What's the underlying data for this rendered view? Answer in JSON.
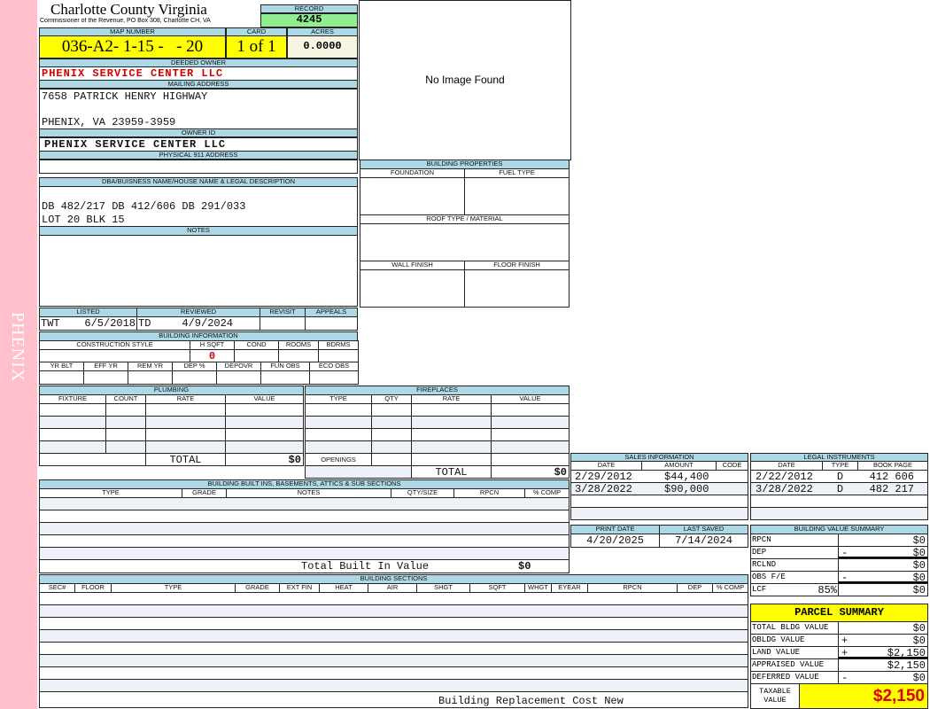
{
  "side_label": "PHENIX",
  "header": {
    "title": "Charlotte County Virginia",
    "subtitle": "Commissioner of the Revenue, PO Box 308, Charlotte CH, VA",
    "record_label": "RECORD",
    "record_value": "4245"
  },
  "map": {
    "map_number_label": "MAP NUMBER",
    "map_number": "036-A2- 1-15 -   - 20",
    "card_label": "CARD",
    "card": "1 of 1",
    "acres_label": "ACRES",
    "acres": "0.0000"
  },
  "owner": {
    "deeded_owner_label": "DEEDED OWNER",
    "deeded_owner": "PHENIX SERVICE CENTER LLC",
    "mailing_address_label": "MAILING ADDRESS",
    "address_line1": "7658 PATRICK HENRY HIGHWAY",
    "address_line2": "PHENIX, VA 23959-3959",
    "owner_id_label": "OWNER ID",
    "owner_id": "PHENIX SERVICE CENTER LLC",
    "physical_address_label": "PHYSICAL 911 ADDRESS"
  },
  "image": {
    "placeholder": "No Image Found"
  },
  "legal": {
    "label": "DBA/BUISNESS NAME/HOUSE NAME & LEGAL DESCRIPTION",
    "line1": "DB 482/217 DB 412/606 DB 291/033",
    "line2": "LOT 20 BLK 15",
    "notes_label": "NOTES"
  },
  "building_properties": {
    "title": "BUILDING PROPERTIES",
    "foundation": "FOUNDATION",
    "fuel_type": "FUEL TYPE",
    "roof": "ROOF TYPE / MATERIAL",
    "wall_finish": "WALL FINISH",
    "floor_finish": "FLOOR FINISH"
  },
  "review": {
    "listed_label": "LISTED",
    "listed_by": "TWT",
    "listed_date": "6/5/2018",
    "reviewed_label": "REVIEWED",
    "reviewed_by": "TD",
    "reviewed_date": "4/9/2024",
    "revisit_label": "REVISIT",
    "appeals_label": "APPEALS"
  },
  "building_info": {
    "title": "BUILDING INFORMATION",
    "row1_labels": [
      "CONSTRUCTION STYLE",
      "H SQFT",
      "COND",
      "ROOMS",
      "BDRMS"
    ],
    "hsqft": "0",
    "row2_labels": [
      "YR BLT",
      "EFF YR",
      "REM YR",
      "DEP %",
      "DEPOVR",
      "FUN OBS",
      "ECO OBS"
    ]
  },
  "plumbing": {
    "title": "PLUMBING",
    "columns": [
      "FIXTURE",
      "COUNT",
      "RATE",
      "VALUE"
    ],
    "total_label": "TOTAL",
    "total": "$0"
  },
  "fireplaces": {
    "title": "FIREPLACES",
    "columns": [
      "TYPE",
      "QTY",
      "RATE",
      "VALUE"
    ],
    "openings_label": "OPENINGS",
    "total_label": "TOTAL",
    "total": "$0"
  },
  "built_ins": {
    "title": "BUILDING BUILT INS, BASEMENTS, ATTICS & SUB SECTIONS",
    "columns": [
      "TYPE",
      "GRADE",
      "NOTES",
      "QTY/SIZE",
      "RPCN",
      "% COMP"
    ],
    "total_label": "Total Built In Value",
    "total": "$0"
  },
  "sections": {
    "title": "BUILDING SECTIONS",
    "columns": [
      "SEC#",
      "FLOOR",
      "TYPE",
      "GRADE",
      "EXT FIN",
      "HEAT",
      "AIR",
      "SHGT",
      "SQFT",
      "WHGT",
      "EYEAR",
      "RPCN",
      "DEP",
      "% COMP"
    ],
    "footer_label": "Building Replacement Cost New"
  },
  "sales": {
    "title": "SALES INFORMATION",
    "columns": [
      "DATE",
      "AMOUNT",
      "CODE"
    ],
    "rows": [
      {
        "date": "2/29/2012",
        "amount": "$44,400",
        "code": ""
      },
      {
        "date": "3/28/2022",
        "amount": "$90,000",
        "code": ""
      }
    ]
  },
  "legal_instruments": {
    "title": "LEGAL INSTRUMENTS",
    "columns": [
      "DATE",
      "TYPE",
      "BOOK PAGE"
    ],
    "rows": [
      {
        "date": "2/22/2012",
        "type": "D",
        "book_page": "412 606"
      },
      {
        "date": "3/28/2022",
        "type": "D",
        "book_page": "482 217"
      }
    ]
  },
  "dates": {
    "print_date_label": "PRINT DATE",
    "print_date": "4/20/2025",
    "last_saved_label": "LAST SAVED",
    "last_saved": "7/14/2024"
  },
  "value_summary": {
    "title": "BUILDING VALUE SUMMARY",
    "rows": [
      {
        "label": "RPCN",
        "sign": "",
        "value": "$0"
      },
      {
        "label": "DEP",
        "sign": "-",
        "value": "$0"
      },
      {
        "label": "RCLND",
        "sign": "",
        "value": "$0"
      },
      {
        "label": "OBS F/E",
        "sign": "-",
        "value": "$0"
      },
      {
        "label": "LCF",
        "sign": "",
        "value": "$0"
      }
    ],
    "lcf_pct": "85%"
  },
  "parcel_summary": {
    "title": "PARCEL SUMMARY",
    "rows": [
      {
        "label": "TOTAL BLDG VALUE",
        "sign": "",
        "value": "$0"
      },
      {
        "label": "OBLDG VALUE",
        "sign": "+",
        "value": "$0"
      },
      {
        "label": "LAND VALUE",
        "sign": "+",
        "value": "$2,150"
      },
      {
        "label": "APPRAISED VALUE",
        "sign": "",
        "value": "$2,150"
      },
      {
        "label": "DEFERRED VALUE",
        "sign": "-",
        "value": "$0"
      }
    ],
    "taxable_label": "TAXABLE VALUE",
    "taxable_value": "$2,150"
  },
  "colors": {
    "header_blue": "#add8e6",
    "highlight_yellow": "#ffff00",
    "record_green": "#90ee90",
    "sidebar_pink": "#ffc0cb",
    "owner_red": "#d00000"
  }
}
